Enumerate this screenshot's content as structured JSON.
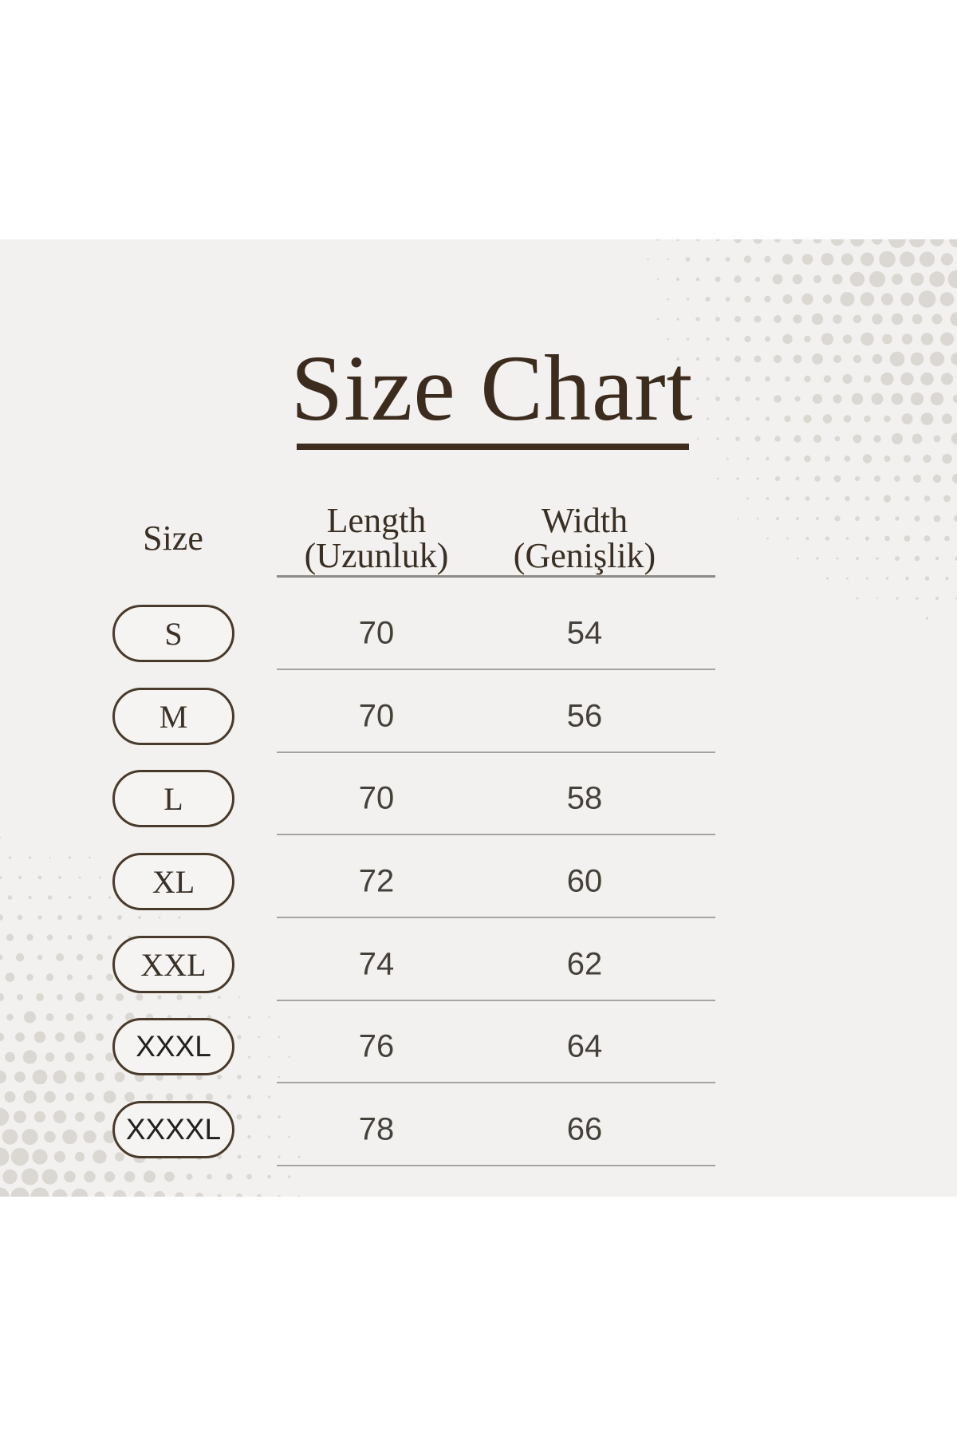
{
  "title": {
    "text": "Size Chart"
  },
  "table": {
    "columns": [
      {
        "label": "Size",
        "sublabel": ""
      },
      {
        "label": "Length",
        "sublabel": "(Uzunluk)"
      },
      {
        "label": "Width",
        "sublabel": "(Genişlik)"
      }
    ],
    "rows": [
      {
        "size": "S",
        "length": "70",
        "width": "54"
      },
      {
        "size": "M",
        "length": "70",
        "width": "56"
      },
      {
        "size": "L",
        "length": "70",
        "width": "58"
      },
      {
        "size": "XL",
        "length": "72",
        "width": "60"
      },
      {
        "size": "XXL",
        "length": "74",
        "width": "62"
      },
      {
        "size": "XXXL",
        "length": "76",
        "width": "64"
      },
      {
        "size": "XXXXL",
        "length": "78",
        "width": "66"
      }
    ]
  },
  "colors": {
    "canvas_background": "#f2f1ef",
    "page_background": "#ffffff",
    "title_brown": "#3c2c1e",
    "pill_border": "#493a2b",
    "separator_gray": "#a6a4a0",
    "halftone_dot": "#dbd8d4"
  },
  "chart_data": {
    "type": "table",
    "title": "Size Chart",
    "columns": [
      "Size",
      "Length (Uzunluk)",
      "Width (Genişlik)"
    ],
    "rows": [
      [
        "S",
        70,
        54
      ],
      [
        "M",
        70,
        56
      ],
      [
        "L",
        70,
        58
      ],
      [
        "XL",
        72,
        60
      ],
      [
        "XXL",
        74,
        62
      ],
      [
        "XXXL",
        76,
        64
      ],
      [
        "XXXXL",
        78,
        66
      ]
    ]
  }
}
